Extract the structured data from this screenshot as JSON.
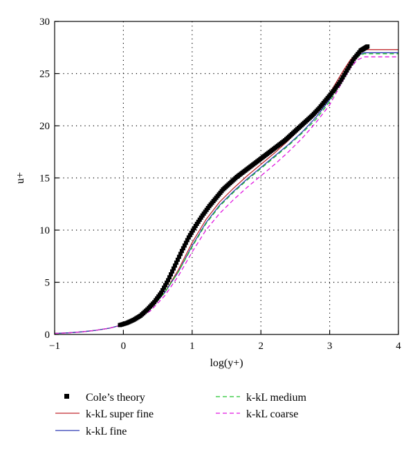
{
  "chart_data": {
    "type": "line",
    "title": "",
    "xlabel": "log(y+)",
    "ylabel": "u+",
    "xlim": [
      -1,
      4
    ],
    "ylim": [
      0,
      30
    ],
    "x_ticks": [
      -1,
      0,
      1,
      2,
      3,
      4
    ],
    "y_ticks": [
      0,
      5,
      10,
      15,
      20,
      25,
      30
    ],
    "grid": "dotted",
    "legend_position": "bottom",
    "colors": {
      "cole": "#000000",
      "super_fine": "#c0282d",
      "fine": "#2e3bb5",
      "medium": "#1ec42b",
      "coarse": "#e016e0"
    },
    "series": [
      {
        "name": "Cole's theory",
        "style": "markers",
        "x": [
          -0.05,
          0.05,
          0.15,
          0.25,
          0.35,
          0.45,
          0.55,
          0.65,
          0.75,
          0.85,
          0.95,
          1.05,
          1.15,
          1.25,
          1.35,
          1.45,
          1.55,
          1.65,
          1.75,
          1.85,
          1.95,
          2.05,
          2.15,
          2.25,
          2.35,
          2.45,
          2.55,
          2.65,
          2.75,
          2.85,
          2.95,
          3.05,
          3.15,
          3.25,
          3.35,
          3.45,
          3.5,
          3.55
        ],
        "y": [
          0.9,
          1.1,
          1.4,
          1.8,
          2.4,
          3.1,
          4.0,
          5.2,
          6.6,
          8.0,
          9.3,
          10.4,
          11.4,
          12.3,
          13.1,
          13.9,
          14.5,
          15.1,
          15.6,
          16.1,
          16.6,
          17.1,
          17.6,
          18.1,
          18.6,
          19.2,
          19.8,
          20.4,
          21.0,
          21.7,
          22.5,
          23.3,
          24.2,
          25.3,
          26.4,
          27.2,
          27.4,
          27.6
        ]
      },
      {
        "name": "k-kL super fine",
        "style": "solid",
        "x": [
          -1.0,
          -0.8,
          -0.6,
          -0.4,
          -0.2,
          0.0,
          0.2,
          0.4,
          0.6,
          0.8,
          1.0,
          1.2,
          1.4,
          1.6,
          1.8,
          2.0,
          2.2,
          2.4,
          2.6,
          2.8,
          3.0,
          3.1,
          3.2,
          3.3,
          3.4,
          3.5,
          3.55,
          4.0
        ],
        "y": [
          0.1,
          0.15,
          0.25,
          0.4,
          0.6,
          0.95,
          1.5,
          2.5,
          4.0,
          6.2,
          8.8,
          11.0,
          12.7,
          14.0,
          15.2,
          16.3,
          17.4,
          18.6,
          19.9,
          21.3,
          23.1,
          24.2,
          25.3,
          26.3,
          27.0,
          27.3,
          27.3,
          27.3
        ]
      },
      {
        "name": "k-kL fine",
        "style": "solid",
        "x": [
          -1.0,
          -0.8,
          -0.6,
          -0.4,
          -0.2,
          0.0,
          0.2,
          0.4,
          0.6,
          0.8,
          1.0,
          1.2,
          1.4,
          1.6,
          1.8,
          2.0,
          2.2,
          2.4,
          2.6,
          2.8,
          3.0,
          3.1,
          3.2,
          3.3,
          3.4,
          3.5,
          3.55,
          4.0
        ],
        "y": [
          0.1,
          0.15,
          0.25,
          0.4,
          0.6,
          0.95,
          1.5,
          2.5,
          4.0,
          6.0,
          8.5,
          10.7,
          12.4,
          13.7,
          14.9,
          16.0,
          17.1,
          18.2,
          19.4,
          20.8,
          22.5,
          23.6,
          24.8,
          25.9,
          26.7,
          27.0,
          27.0,
          27.0
        ]
      },
      {
        "name": "k-kL medium",
        "style": "dashed",
        "x": [
          -1.0,
          -0.8,
          -0.6,
          -0.4,
          -0.2,
          0.0,
          0.2,
          0.4,
          0.6,
          0.8,
          1.0,
          1.2,
          1.4,
          1.6,
          1.8,
          2.0,
          2.2,
          2.4,
          2.6,
          2.8,
          3.0,
          3.1,
          3.2,
          3.3,
          3.4,
          3.5,
          3.55,
          4.0
        ],
        "y": [
          0.1,
          0.15,
          0.25,
          0.4,
          0.6,
          0.95,
          1.5,
          2.5,
          4.0,
          6.0,
          8.4,
          10.6,
          12.3,
          13.6,
          14.8,
          15.9,
          17.0,
          18.1,
          19.3,
          20.6,
          22.3,
          23.4,
          24.6,
          25.7,
          26.6,
          26.9,
          26.9,
          26.9
        ]
      },
      {
        "name": "k-kL coarse",
        "style": "dashed",
        "x": [
          -1.0,
          -0.8,
          -0.6,
          -0.4,
          -0.2,
          0.0,
          0.2,
          0.4,
          0.6,
          0.8,
          1.0,
          1.2,
          1.4,
          1.6,
          1.8,
          2.0,
          2.2,
          2.4,
          2.6,
          2.8,
          3.0,
          3.1,
          3.2,
          3.3,
          3.4,
          3.5,
          3.55,
          4.0
        ],
        "y": [
          0.1,
          0.15,
          0.25,
          0.4,
          0.6,
          0.95,
          1.4,
          2.3,
          3.7,
          5.6,
          7.9,
          10.0,
          11.6,
          12.9,
          14.1,
          15.2,
          16.3,
          17.5,
          18.8,
          20.3,
          22.0,
          23.2,
          24.4,
          25.5,
          26.3,
          26.6,
          26.6,
          26.6
        ]
      }
    ]
  },
  "legend": [
    {
      "label": "Cole’s theory",
      "key": "cole"
    },
    {
      "label": "k-kL super fine",
      "key": "super_fine"
    },
    {
      "label": "k-kL fine",
      "key": "fine"
    },
    {
      "label": "k-kL medium",
      "key": "medium"
    },
    {
      "label": "k-kL coarse",
      "key": "coarse"
    }
  ]
}
